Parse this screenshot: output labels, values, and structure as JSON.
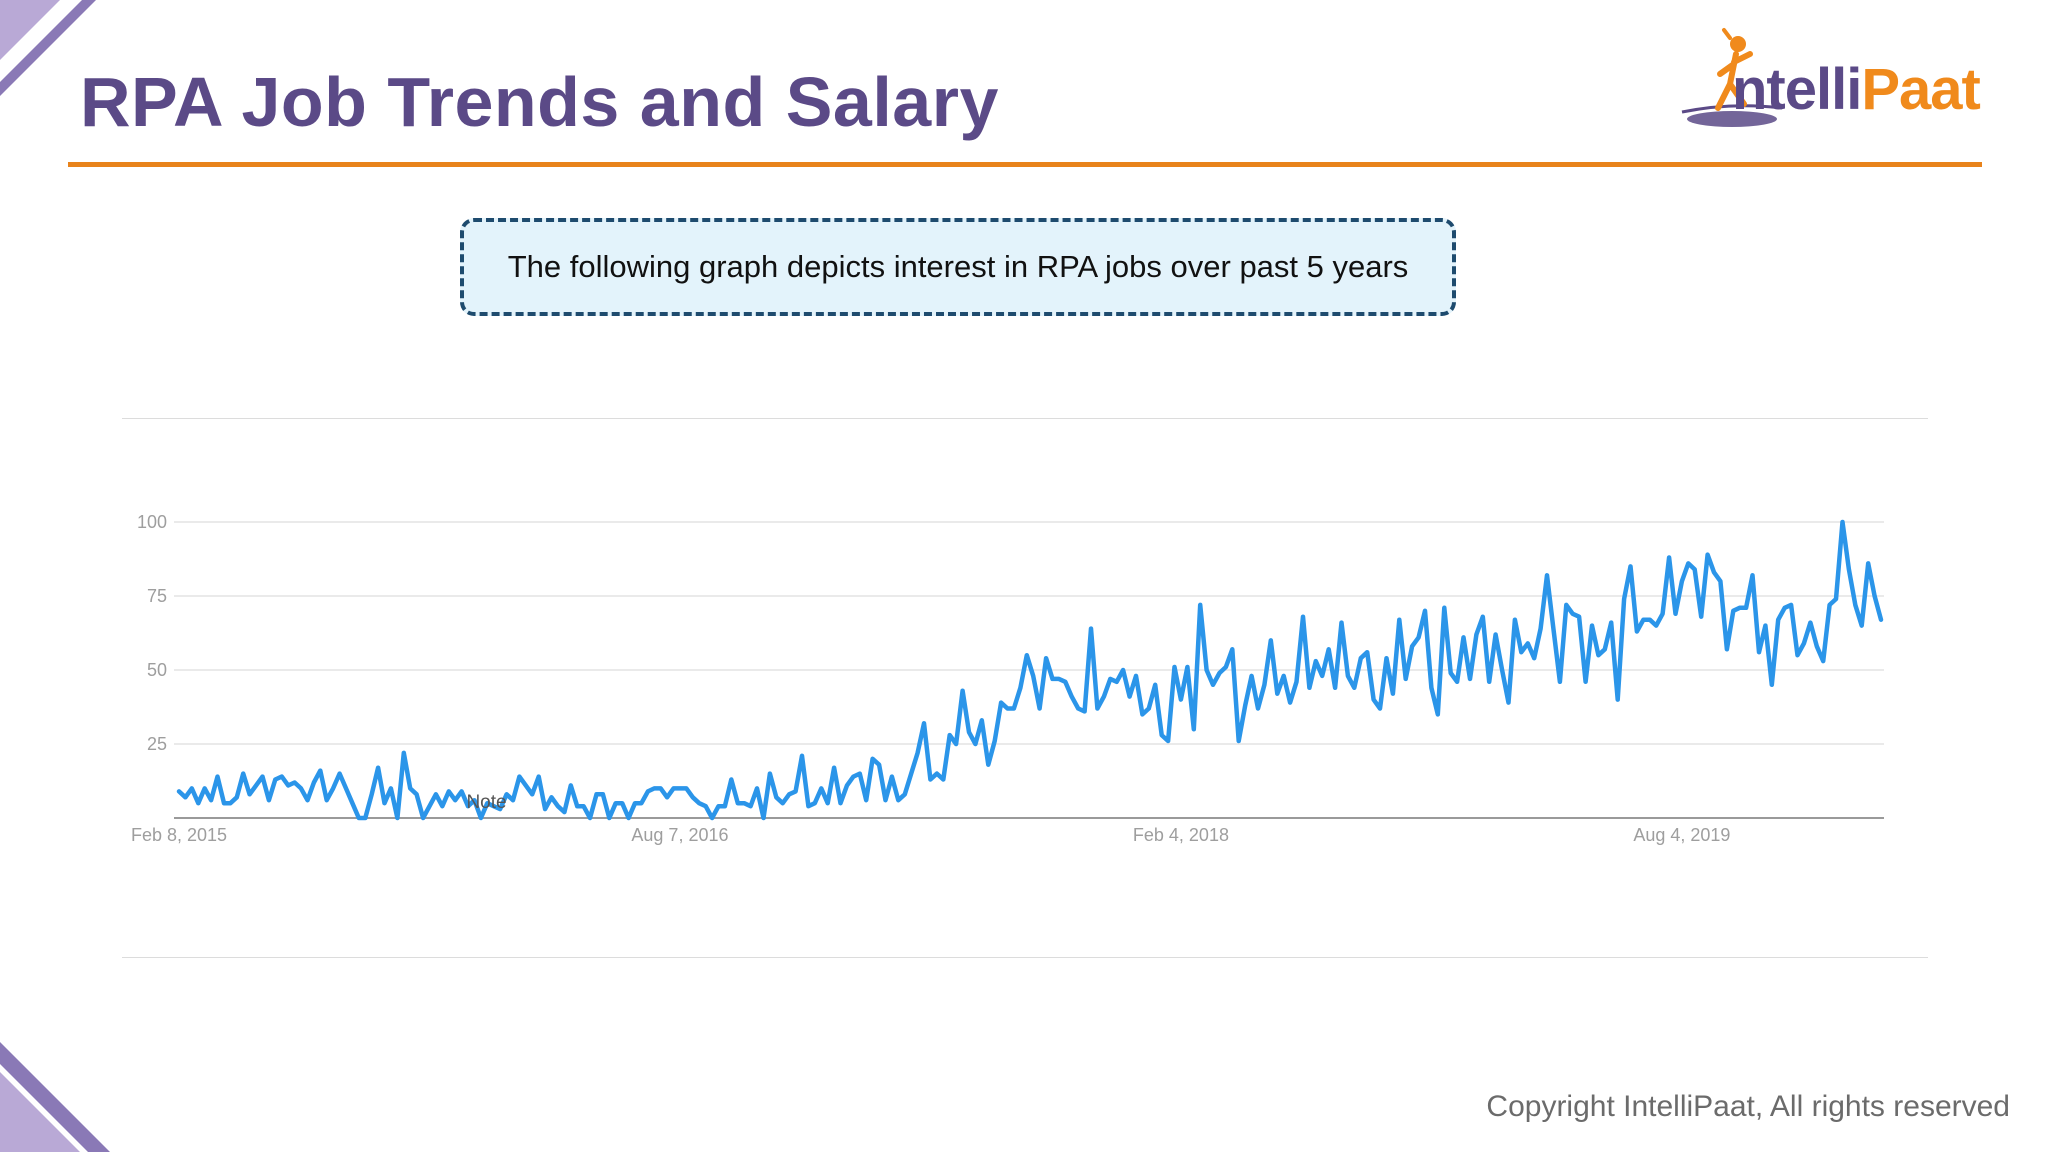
{
  "slide": {
    "title": "RPA Job Trends and Salary",
    "callout": "The following graph depicts interest in RPA jobs over past 5 years",
    "copyright": "Copyright IntelliPaat, All rights reserved"
  },
  "logo": {
    "part1": "ntelli",
    "part2": "Paat",
    "icon": "running-figure-icon"
  },
  "colors": {
    "title": "#5b4a87",
    "accent": "#e8831b",
    "line": "#2b95e9",
    "callout_bg": "#e3f3fb",
    "callout_border": "#1e4b6e"
  },
  "chart_data": {
    "type": "line",
    "title": "",
    "xlabel": "",
    "ylabel": "",
    "ylim": [
      0,
      100
    ],
    "yticks": [
      25,
      50,
      75,
      100
    ],
    "xticks": [
      {
        "label": "Feb 8, 2015",
        "index": 0
      },
      {
        "label": "Aug 7, 2016",
        "index": 78
      },
      {
        "label": "Feb 4, 2018",
        "index": 156
      },
      {
        "label": "Aug 4, 2019",
        "index": 234
      }
    ],
    "annotation": {
      "label": "Note",
      "index": 46,
      "value": 6
    },
    "grid": true,
    "series": [
      {
        "name": "RPA jobs interest",
        "values": [
          9,
          7,
          10,
          5,
          10,
          6,
          14,
          5,
          5,
          7,
          15,
          8,
          11,
          14,
          6,
          13,
          14,
          11,
          12,
          10,
          6,
          12,
          16,
          6,
          10,
          15,
          10,
          5,
          0,
          0,
          8,
          17,
          5,
          10,
          0,
          22,
          10,
          8,
          0,
          4,
          8,
          4,
          9,
          6,
          9,
          4,
          6,
          0,
          5,
          4,
          3,
          8,
          6,
          14,
          11,
          8,
          14,
          3,
          7,
          4,
          2,
          11,
          4,
          4,
          0,
          8,
          8,
          0,
          5,
          5,
          0,
          5,
          5,
          9,
          10,
          10,
          7,
          10,
          10,
          10,
          7,
          5,
          4,
          0,
          4,
          4,
          13,
          5,
          5,
          4,
          10,
          0,
          15,
          7,
          5,
          8,
          9,
          21,
          4,
          5,
          10,
          5,
          17,
          5,
          11,
          14,
          15,
          6,
          20,
          18,
          6,
          14,
          6,
          8,
          15,
          22,
          32,
          13,
          15,
          13,
          28,
          25,
          43,
          29,
          25,
          33,
          18,
          26,
          39,
          37,
          37,
          44,
          55,
          48,
          37,
          54,
          47,
          47,
          46,
          41,
          37,
          36,
          64,
          37,
          41,
          47,
          46,
          50,
          41,
          48,
          35,
          37,
          45,
          28,
          26,
          51,
          40,
          51,
          30,
          72,
          50,
          45,
          49,
          51,
          57,
          26,
          38,
          48,
          37,
          45,
          60,
          42,
          48,
          39,
          46,
          68,
          44,
          53,
          48,
          57,
          44,
          66,
          48,
          44,
          54,
          56,
          40,
          37,
          54,
          42,
          67,
          47,
          58,
          61,
          70,
          44,
          35,
          71,
          49,
          46,
          61,
          47,
          62,
          68,
          46,
          62,
          50,
          39,
          67,
          56,
          59,
          54,
          64,
          82,
          64,
          46,
          72,
          69,
          68,
          46,
          65,
          55,
          57,
          66,
          40,
          74,
          85,
          63,
          67,
          67,
          65,
          69,
          88,
          69,
          80,
          86,
          84,
          68,
          89,
          83,
          80,
          57,
          70,
          71,
          71,
          82,
          56,
          65,
          45,
          67,
          71,
          72,
          55,
          59,
          66,
          58,
          53,
          72,
          74,
          100,
          84,
          72,
          65,
          86,
          75,
          67
        ]
      }
    ]
  }
}
